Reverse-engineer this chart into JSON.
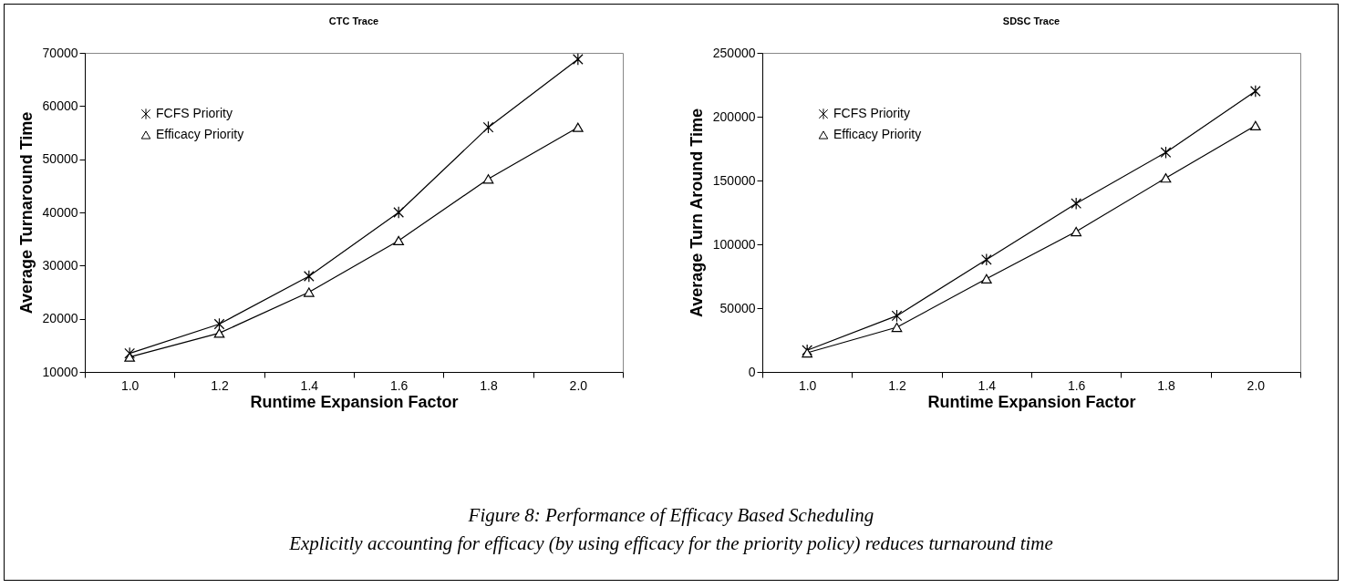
{
  "chart_data": [
    {
      "type": "line",
      "title": "CTC Trace",
      "xlabel": "Runtime Expansion Factor",
      "ylabel": "Average Turnaround Time",
      "categories": [
        "1.0",
        "1.2",
        "1.4",
        "1.6",
        "1.8",
        "2.0"
      ],
      "ylim": [
        10000,
        70000
      ],
      "yticks": [
        10000,
        20000,
        30000,
        40000,
        50000,
        60000,
        70000
      ],
      "legend": "top left",
      "series": [
        {
          "name": "FCFS Priority",
          "color": "#000000",
          "marker": "cross",
          "values": [
            13500,
            19000,
            28000,
            40000,
            56000,
            68800
          ]
        },
        {
          "name": "Efficacy Priority",
          "color": "#000000",
          "marker": "triangle",
          "values": [
            12800,
            17300,
            25000,
            34700,
            46300,
            56000
          ]
        }
      ],
      "annotations": [
        "Figure 8: Performance of Efficacy Based Scheduling",
        "Explicitly accounting for efficacy (by using efficacy for the priority policy) reduces turnaround time"
      ]
    },
    {
      "type": "line",
      "title": "SDSC Trace",
      "xlabel": "Runtime Expansion Factor",
      "ylabel": "Average Turn Around Time",
      "categories": [
        "1.0",
        "1.2",
        "1.4",
        "1.6",
        "1.8",
        "2.0"
      ],
      "ylim": [
        0,
        250000
      ],
      "yticks": [
        0,
        50000,
        100000,
        150000,
        200000,
        250000
      ],
      "legend": "top left",
      "series": [
        {
          "name": "FCFS Priority",
          "color": "#000000",
          "marker": "cross",
          "values": [
            17000,
            44000,
            88000,
            132000,
            172000,
            220000
          ]
        },
        {
          "name": "Efficacy Priority",
          "color": "#000000",
          "marker": "triangle",
          "values": [
            15000,
            35000,
            73000,
            110000,
            152000,
            193000
          ]
        }
      ]
    }
  ]
}
